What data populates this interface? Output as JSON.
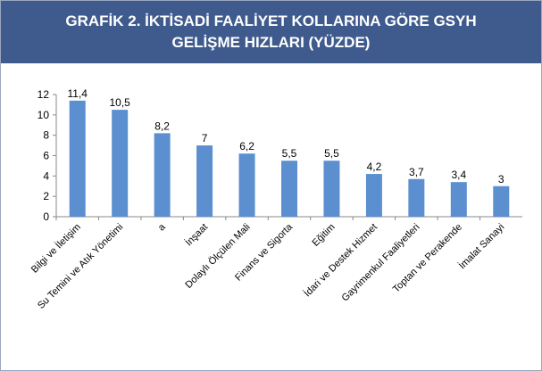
{
  "chart_data": {
    "type": "bar",
    "title": "GRAFİK 2. İKTİSADİ FAALİYET KOLLARINA GÖRE GSYH GELİŞME HIZLARI (YÜZDE)",
    "categories": [
      "Bilgi ve İletişim",
      "Su Temini ve Atık Yönetimi",
      "a",
      "İnşaat",
      "Dolaylı Ölçülen Mali",
      "Finans ve Sigorta",
      "Eğitim",
      "İdari ve Destek Hizmet",
      "Gayrimenkul Faaliyetleri",
      "Toptan ve Perakende",
      "İmalat Sanayi"
    ],
    "values": [
      11.4,
      10.5,
      8.2,
      7,
      6.2,
      5.5,
      5.5,
      4.2,
      3.7,
      3.4,
      3
    ],
    "value_labels": [
      "11,4",
      "10,5",
      "8,2",
      "7",
      "6,2",
      "5,5",
      "5,5",
      "4,2",
      "3,7",
      "3,4",
      "3"
    ],
    "color": "#5b8fd0",
    "ylim": [
      0,
      12
    ],
    "yticks": [
      0,
      2,
      4,
      6,
      8,
      10,
      12
    ],
    "grid": false
  }
}
